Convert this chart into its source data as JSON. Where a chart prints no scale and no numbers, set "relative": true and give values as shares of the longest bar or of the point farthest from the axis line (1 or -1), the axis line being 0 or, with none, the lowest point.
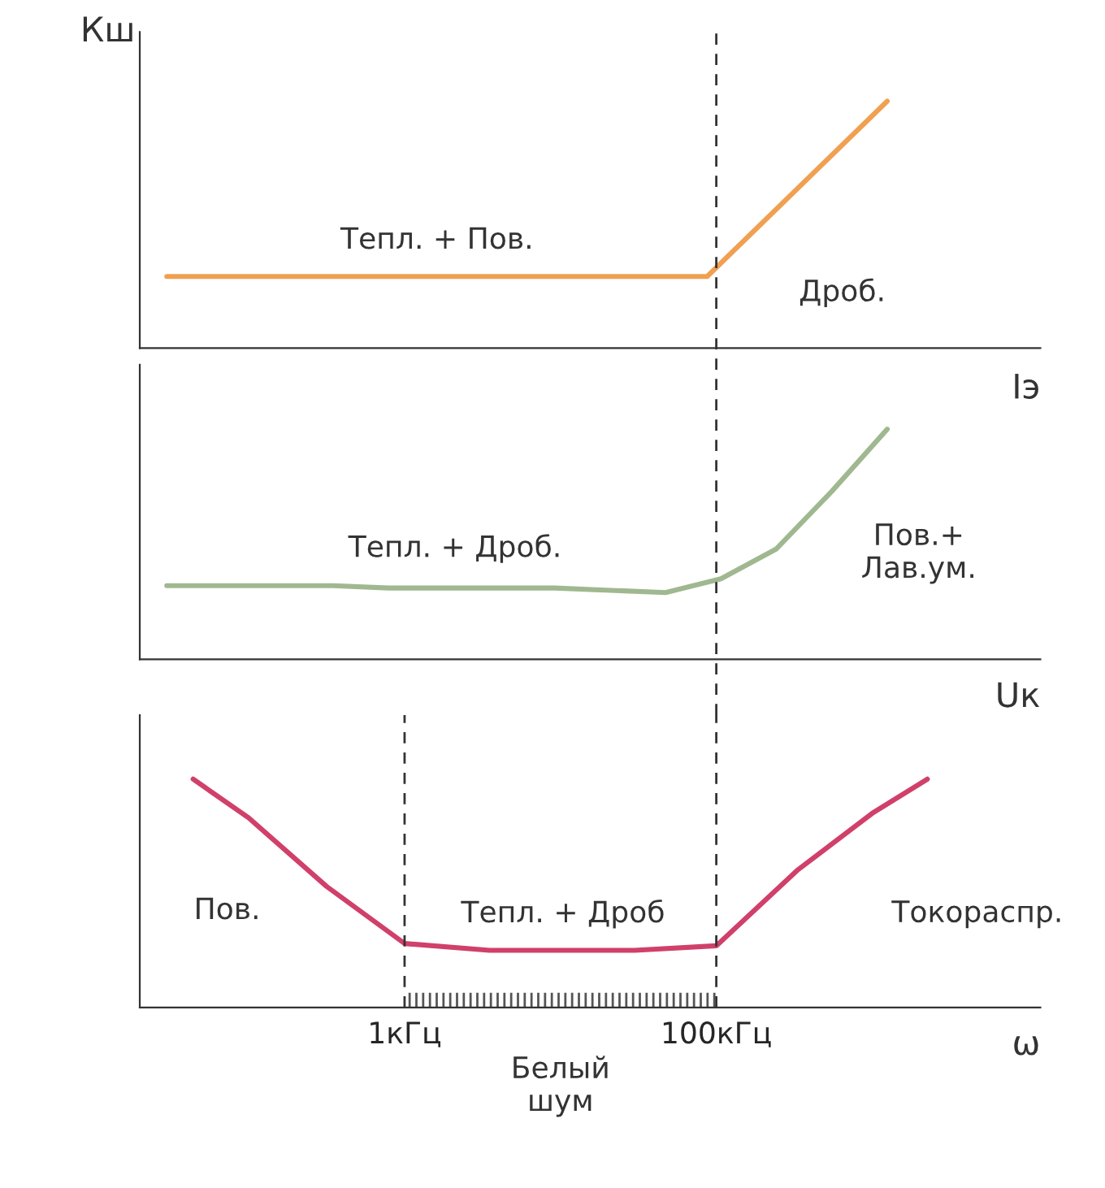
{
  "chart_data": [
    {
      "type": "line",
      "relative": true,
      "ylabel": "Кш",
      "xlabel": "Iэ",
      "tick_labels": false,
      "categories": [
        null,
        null,
        null,
        null,
        null
      ],
      "series": [
        {
          "color": "#f0a050",
          "values": [
            0.29,
            0.29,
            0.29,
            0.29,
            1
          ]
        }
      ],
      "annotations": [
        "Тепл. + Пов.",
        "Дроб."
      ]
    },
    {
      "type": "line",
      "relative": true,
      "xlabel": "Uк",
      "tick_labels": false,
      "categories": [
        null,
        null,
        null,
        null,
        null,
        null,
        null,
        null,
        null,
        null,
        null,
        null,
        null,
        null
      ],
      "series": [
        {
          "color": "#a0b890",
          "values": [
            0.32,
            0.32,
            0.32,
            0.32,
            0.31,
            0.31,
            0.31,
            0.31,
            0.3,
            0.29,
            0.35,
            0.48,
            0.73,
            1
          ]
        }
      ],
      "annotations": [
        "Тепл. + Дроб.",
        "Пов.+\nЛав.ум."
      ]
    },
    {
      "type": "line",
      "relative": true,
      "xlabel": "ω",
      "tick_labels": "x",
      "log": "x",
      "xlim": [
        0.02,
        12000
      ],
      "xticks": [
        {
          "value": 1,
          "label": "1кГц"
        },
        {
          "value": 100,
          "label": "100кГц"
        }
      ],
      "x": [
        0.044,
        0.1,
        0.316,
        1,
        3.5,
        10,
        30,
        100,
        330,
        1000,
        2260
      ],
      "series": [
        {
          "color": "#d0406a",
          "values": [
            1,
            0.83,
            0.53,
            0.28,
            0.25,
            0.25,
            0.25,
            0.27,
            0.6,
            0.85,
            1
          ]
        }
      ],
      "ref_lines": [
        {
          "axis": "x",
          "value": 1,
          "line_style": "dashed",
          "color": "#333333"
        },
        {
          "axis": "x",
          "value": 100,
          "line_style": "dashed",
          "color": "#333333"
        }
      ],
      "bands": [
        {
          "axis": "x",
          "from": 1,
          "to": 100,
          "label": "Белый\nшум",
          "color": "#555555"
        }
      ],
      "annotations": [
        "Пов.",
        "Тепл. + Дроб",
        "Токораспр."
      ]
    }
  ]
}
